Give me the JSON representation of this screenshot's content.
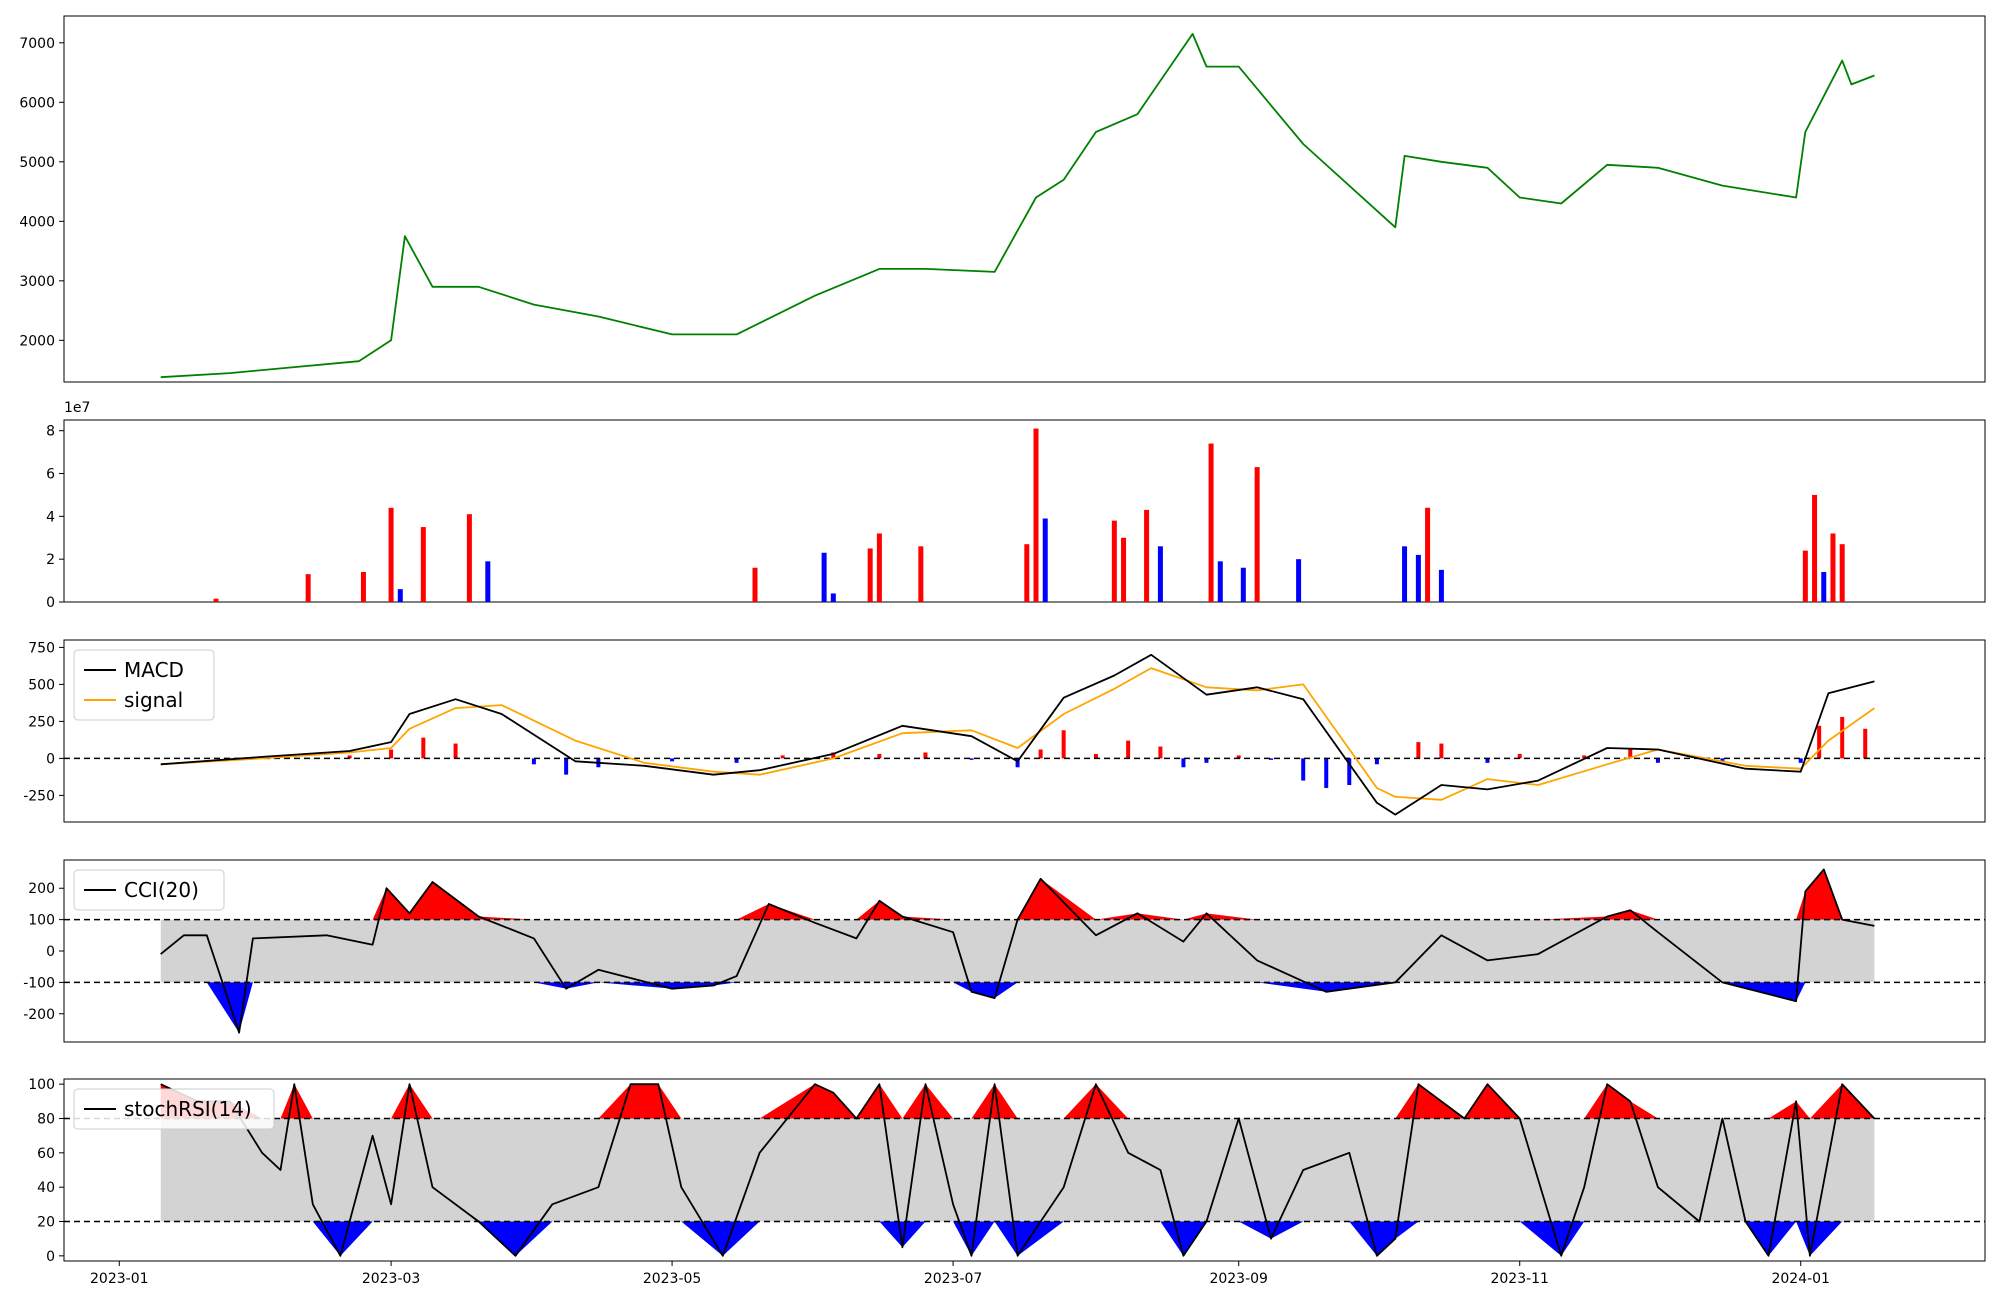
{
  "chart_data": [
    {
      "type": "line",
      "panel": "price",
      "xlim": [
        "2022-12-20",
        "2024-02-10"
      ],
      "ylim": [
        1300,
        7450
      ],
      "y_ticks": [
        2000,
        3000,
        4000,
        5000,
        6000,
        7000
      ],
      "color": "#008000",
      "x": [
        "2023-01-10",
        "2023-01-25",
        "2023-02-08",
        "2023-02-22",
        "2023-03-01",
        "2023-03-04",
        "2023-03-10",
        "2023-03-20",
        "2023-04-01",
        "2023-04-15",
        "2023-05-01",
        "2023-05-15",
        "2023-06-01",
        "2023-06-15",
        "2023-06-25",
        "2023-07-10",
        "2023-07-19",
        "2023-07-25",
        "2023-08-01",
        "2023-08-10",
        "2023-08-22",
        "2023-08-25",
        "2023-09-01",
        "2023-09-15",
        "2023-10-05",
        "2023-10-07",
        "2023-10-15",
        "2023-10-25",
        "2023-11-01",
        "2023-11-10",
        "2023-11-20",
        "2023-12-01",
        "2023-12-15",
        "2023-12-31",
        "2024-01-02",
        "2024-01-10",
        "2024-01-12",
        "2024-01-17"
      ],
      "y": [
        1380,
        1450,
        1550,
        1650,
        2000,
        3750,
        2900,
        2900,
        2600,
        2400,
        2100,
        2100,
        2750,
        3200,
        3200,
        3150,
        4400,
        4700,
        5500,
        5800,
        7150,
        6600,
        6600,
        5300,
        3900,
        5100,
        5000,
        4900,
        4400,
        4300,
        4950,
        4900,
        4600,
        4400,
        5500,
        6700,
        6300,
        6450
      ]
    },
    {
      "type": "bar",
      "panel": "volume",
      "offset_label": "1e7",
      "ylim": [
        0,
        8.5
      ],
      "y_ticks": [
        0,
        2,
        4,
        6,
        8
      ],
      "up_color": "#ff0000",
      "down_color": "#0000ff",
      "x": [
        "2023-01-22",
        "2023-02-11",
        "2023-02-23",
        "2023-03-01",
        "2023-03-03",
        "2023-03-08",
        "2023-03-18",
        "2023-03-22",
        "2023-05-19",
        "2023-06-03",
        "2023-06-05",
        "2023-06-13",
        "2023-06-15",
        "2023-06-24",
        "2023-07-17",
        "2023-07-19",
        "2023-07-21",
        "2023-08-05",
        "2023-08-07",
        "2023-08-12",
        "2023-08-15",
        "2023-08-26",
        "2023-08-28",
        "2023-09-02",
        "2023-09-05",
        "2023-09-14",
        "2023-10-07",
        "2023-10-10",
        "2023-10-12",
        "2023-10-15",
        "2024-01-02",
        "2024-01-04",
        "2024-01-06",
        "2024-01-08",
        "2024-01-10"
      ],
      "values": [
        0.15,
        1.3,
        1.4,
        4.4,
        0.6,
        3.5,
        4.1,
        1.9,
        1.6,
        2.3,
        0.4,
        2.5,
        3.2,
        2.6,
        2.7,
        8.1,
        3.9,
        3.8,
        3.0,
        4.3,
        2.6,
        7.4,
        1.9,
        1.6,
        6.3,
        2.0,
        2.6,
        2.2,
        4.4,
        1.5,
        2.4,
        5.0,
        1.4,
        3.2,
        2.7
      ],
      "direction": [
        "up",
        "up",
        "up",
        "up",
        "down",
        "up",
        "up",
        "down",
        "up",
        "down",
        "down",
        "up",
        "up",
        "up",
        "up",
        "up",
        "down",
        "up",
        "up",
        "up",
        "down",
        "up",
        "down",
        "down",
        "up",
        "down",
        "down",
        "down",
        "up",
        "down",
        "up",
        "up",
        "down",
        "up",
        "up"
      ]
    },
    {
      "type": "line",
      "panel": "macd",
      "ylim": [
        -430,
        800
      ],
      "y_ticks": [
        -250,
        0,
        250,
        500,
        750
      ],
      "reference_line": 0,
      "legend": "top-left",
      "x": [
        "2023-01-10",
        "2023-02-01",
        "2023-02-20",
        "2023-03-01",
        "2023-03-05",
        "2023-03-15",
        "2023-03-25",
        "2023-04-10",
        "2023-04-25",
        "2023-05-10",
        "2023-05-20",
        "2023-06-05",
        "2023-06-20",
        "2023-07-05",
        "2023-07-15",
        "2023-07-25",
        "2023-08-05",
        "2023-08-13",
        "2023-08-25",
        "2023-09-05",
        "2023-09-15",
        "2023-10-01",
        "2023-10-05",
        "2023-10-15",
        "2023-10-25",
        "2023-11-05",
        "2023-11-20",
        "2023-12-01",
        "2023-12-20",
        "2024-01-01",
        "2024-01-07",
        "2024-01-17"
      ],
      "series": [
        {
          "name": "MACD",
          "color": "#000000",
          "values": [
            -40,
            10,
            50,
            110,
            300,
            400,
            300,
            -20,
            -50,
            -110,
            -80,
            30,
            220,
            150,
            -20,
            410,
            560,
            700,
            430,
            480,
            400,
            -300,
            -380,
            -180,
            -210,
            -150,
            70,
            60,
            -70,
            -90,
            440,
            520
          ]
        },
        {
          "name": "signal",
          "color": "#ffa500",
          "values": [
            -40,
            0,
            40,
            70,
            200,
            340,
            360,
            120,
            -30,
            -90,
            -110,
            0,
            170,
            190,
            70,
            300,
            470,
            610,
            480,
            460,
            500,
            -200,
            -260,
            -280,
            -140,
            -180,
            -40,
            60,
            -50,
            -70,
            120,
            340
          ]
        }
      ],
      "histogram": {
        "up_color": "#ff0000",
        "down_color": "#0000ff",
        "x": [
          "2023-02-20",
          "2023-03-01",
          "2023-03-08",
          "2023-03-15",
          "2023-04-01",
          "2023-04-08",
          "2023-04-15",
          "2023-05-01",
          "2023-05-15",
          "2023-05-25",
          "2023-06-05",
          "2023-06-15",
          "2023-06-25",
          "2023-07-05",
          "2023-07-15",
          "2023-07-20",
          "2023-07-25",
          "2023-08-01",
          "2023-08-08",
          "2023-08-15",
          "2023-08-20",
          "2023-08-25",
          "2023-09-01",
          "2023-09-08",
          "2023-09-15",
          "2023-09-20",
          "2023-09-25",
          "2023-10-01",
          "2023-10-10",
          "2023-10-15",
          "2023-10-25",
          "2023-11-01",
          "2023-11-15",
          "2023-11-25",
          "2023-12-01",
          "2023-12-15",
          "2024-01-01",
          "2024-01-05",
          "2024-01-10",
          "2024-01-15"
        ],
        "values": [
          20,
          60,
          140,
          100,
          -40,
          -110,
          -60,
          -20,
          -30,
          20,
          40,
          30,
          40,
          -10,
          -60,
          60,
          190,
          30,
          120,
          80,
          -60,
          -30,
          20,
          -10,
          -150,
          -200,
          -180,
          -40,
          110,
          100,
          -30,
          30,
          20,
          60,
          -30,
          -20,
          -30,
          220,
          280,
          200
        ]
      }
    },
    {
      "type": "line",
      "panel": "cci",
      "ylim": [
        -290,
        290
      ],
      "y_ticks": [
        -200,
        -100,
        0,
        100,
        200
      ],
      "bands": [
        -100,
        100
      ],
      "band_fill": "#d3d3d3",
      "over_fill": "#ff0000",
      "under_fill": "#0000ff",
      "legend": "top-left",
      "x": [
        "2023-01-10",
        "2023-01-15",
        "2023-01-20",
        "2023-01-27",
        "2023-01-30",
        "2023-02-15",
        "2023-02-25",
        "2023-02-28",
        "2023-03-05",
        "2023-03-10",
        "2023-03-20",
        "2023-04-01",
        "2023-04-08",
        "2023-04-15",
        "2023-05-01",
        "2023-05-10",
        "2023-05-15",
        "2023-05-22",
        "2023-06-01",
        "2023-06-10",
        "2023-06-15",
        "2023-06-20",
        "2023-07-01",
        "2023-07-05",
        "2023-07-10",
        "2023-07-15",
        "2023-07-20",
        "2023-08-01",
        "2023-08-10",
        "2023-08-20",
        "2023-08-25",
        "2023-09-05",
        "2023-09-20",
        "2023-10-05",
        "2023-10-15",
        "2023-10-25",
        "2023-11-05",
        "2023-11-20",
        "2023-11-25",
        "2023-12-01",
        "2023-12-15",
        "2023-12-31",
        "2024-01-02",
        "2024-01-06",
        "2024-01-10",
        "2024-01-17"
      ],
      "series": [
        {
          "name": "CCI(20)",
          "color": "#000000",
          "values": [
            -10,
            50,
            50,
            -260,
            40,
            50,
            20,
            200,
            120,
            220,
            110,
            40,
            -120,
            -60,
            -120,
            -110,
            -80,
            150,
            90,
            40,
            160,
            110,
            60,
            -130,
            -150,
            100,
            230,
            50,
            120,
            30,
            120,
            -30,
            -130,
            -100,
            50,
            -30,
            -10,
            110,
            130,
            60,
            -100,
            -160,
            190,
            260,
            100,
            80
          ]
        }
      ]
    },
    {
      "type": "line",
      "panel": "stochrsi",
      "ylim": [
        -3,
        103
      ],
      "y_ticks": [
        0,
        20,
        40,
        60,
        80,
        100
      ],
      "bands": [
        20,
        80
      ],
      "band_fill": "#d3d3d3",
      "over_fill": "#ff0000",
      "under_fill": "#0000ff",
      "legend": "top-left",
      "x": [
        "2023-01-10",
        "2023-01-18",
        "2023-01-25",
        "2023-02-01",
        "2023-02-05",
        "2023-02-08",
        "2023-02-12",
        "2023-02-18",
        "2023-02-25",
        "2023-03-01",
        "2023-03-05",
        "2023-03-10",
        "2023-03-20",
        "2023-03-28",
        "2023-04-05",
        "2023-04-15",
        "2023-04-22",
        "2023-04-28",
        "2023-05-03",
        "2023-05-12",
        "2023-05-20",
        "2023-06-01",
        "2023-06-05",
        "2023-06-10",
        "2023-06-15",
        "2023-06-20",
        "2023-06-25",
        "2023-07-01",
        "2023-07-05",
        "2023-07-10",
        "2023-07-15",
        "2023-07-25",
        "2023-08-01",
        "2023-08-08",
        "2023-08-15",
        "2023-08-20",
        "2023-08-25",
        "2023-09-01",
        "2023-09-08",
        "2023-09-15",
        "2023-09-25",
        "2023-10-01",
        "2023-10-05",
        "2023-10-10",
        "2023-10-20",
        "2023-10-25",
        "2023-11-01",
        "2023-11-10",
        "2023-11-15",
        "2023-11-20",
        "2023-11-25",
        "2023-12-01",
        "2023-12-10",
        "2023-12-15",
        "2023-12-20",
        "2023-12-25",
        "2023-12-31",
        "2024-01-03",
        "2024-01-10",
        "2024-01-17"
      ],
      "series": [
        {
          "name": "stochRSI(14)",
          "color": "#000000",
          "values": [
            100,
            90,
            90,
            60,
            50,
            100,
            30,
            0,
            70,
            30,
            100,
            40,
            20,
            0,
            30,
            40,
            100,
            100,
            40,
            0,
            60,
            100,
            95,
            80,
            100,
            5,
            100,
            30,
            0,
            100,
            0,
            40,
            100,
            60,
            50,
            0,
            20,
            80,
            10,
            50,
            60,
            0,
            10,
            100,
            80,
            100,
            80,
            0,
            40,
            100,
            90,
            40,
            20,
            80,
            20,
            0,
            90,
            0,
            100,
            80
          ]
        }
      ]
    }
  ],
  "x_axis": {
    "tick_labels": [
      "2023-01",
      "2023-03",
      "2023-05",
      "2023-07",
      "2023-09",
      "2023-11",
      "2024-01"
    ]
  }
}
